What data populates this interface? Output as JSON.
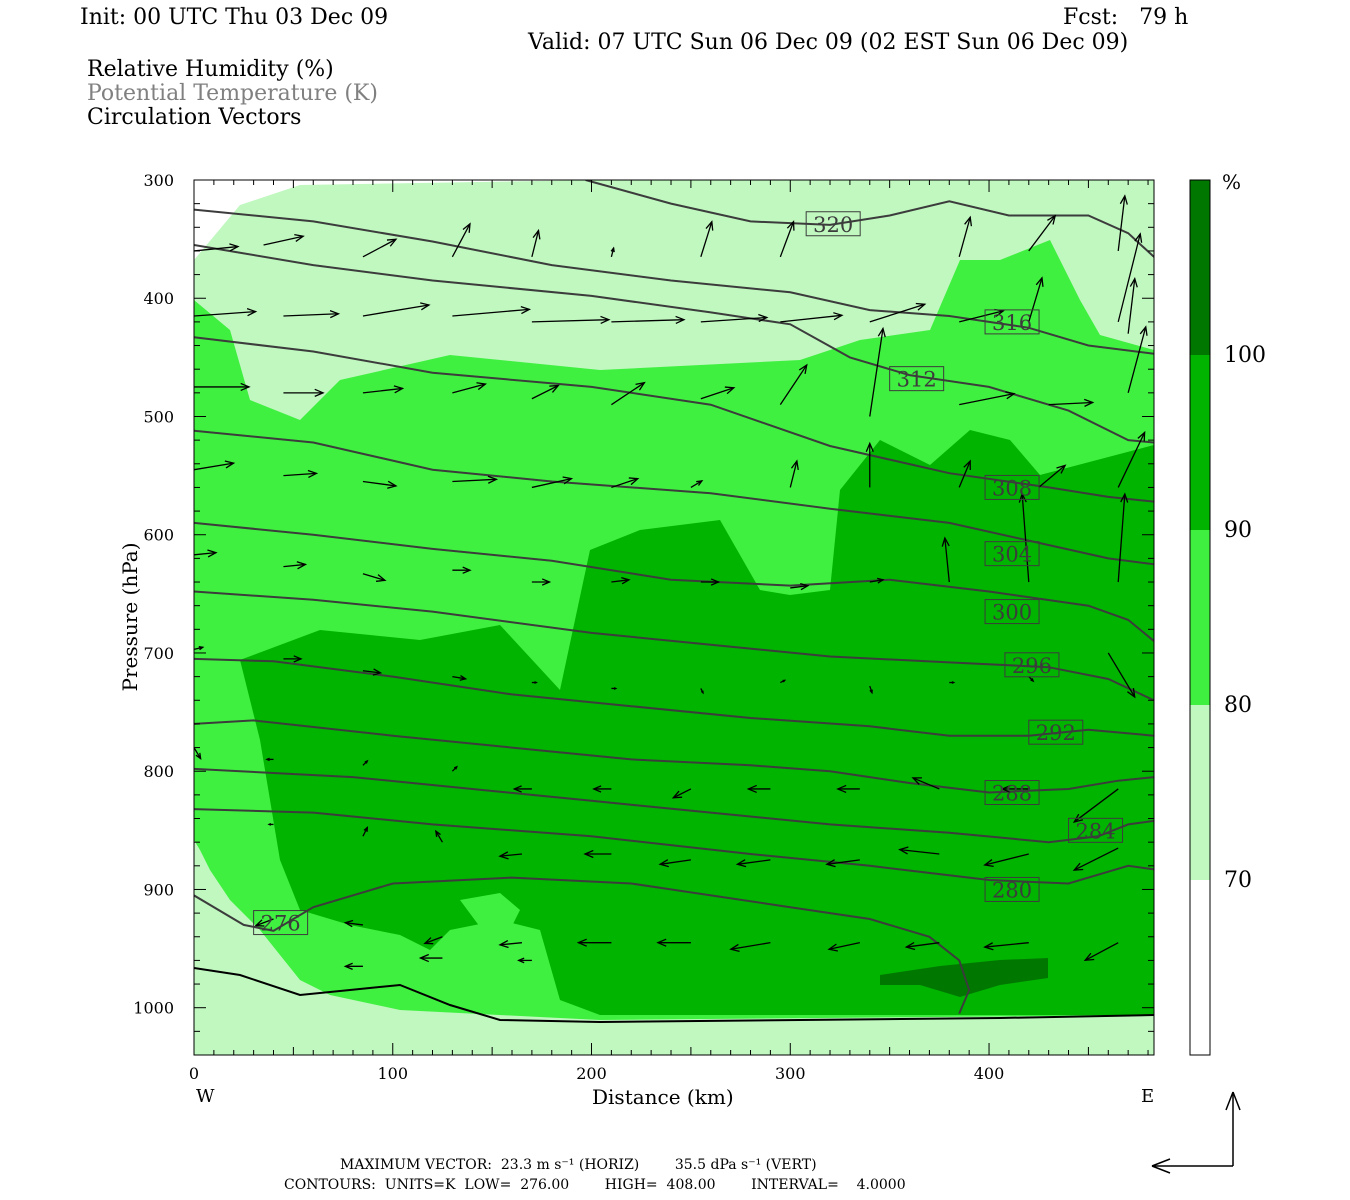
{
  "header": {
    "init": "Init: 00 UTC Thu 03 Dec 09",
    "fcst": "Fcst:   79 h",
    "valid": "Valid: 07 UTC Sun 06 Dec 09 (02 EST Sun 06 Dec 09)",
    "fields": [
      "Relative Humidity (%)",
      "Potential Temperature (K)",
      "Circulation Vectors"
    ]
  },
  "colors": {
    "rh_70_80": "#c0f8c0",
    "rh_80_90": "#40f040",
    "rh_90_100": "#00b400",
    "rh_100": "#007800",
    "theta": "#3c3c3c",
    "field2_text": "#808080"
  },
  "chart_data": {
    "type": "heatmap",
    "xlabel": "Distance (km)",
    "ylabel": "Pressure (hPa)",
    "xlim": [
      0,
      483
    ],
    "ylim": [
      1040,
      300
    ],
    "y_scale": "linear",
    "xticks": [
      "0",
      "100",
      "200",
      "300",
      "400"
    ],
    "yticks": [
      "300",
      "400",
      "500",
      "600",
      "700",
      "800",
      "900",
      "1000"
    ],
    "west_label": "W",
    "east_label": "E",
    "colorbar": {
      "unit": "%",
      "levels": [
        "100",
        "90",
        "80",
        "70"
      ]
    },
    "theta_contours": [
      {
        "label": "276",
        "label_at": [
          30,
          928
        ],
        "points": [
          [
            0,
            905
          ],
          [
            25,
            930
          ],
          [
            40,
            935
          ],
          [
            60,
            915
          ],
          [
            100,
            895
          ],
          [
            160,
            890
          ],
          [
            220,
            895
          ],
          [
            300,
            915
          ],
          [
            340,
            925
          ],
          [
            370,
            940
          ],
          [
            385,
            960
          ],
          [
            390,
            985
          ],
          [
            385,
            1005
          ]
        ]
      },
      {
        "label": "280",
        "label_at": [
          398,
          900
        ],
        "points": [
          [
            0,
            832
          ],
          [
            60,
            835
          ],
          [
            120,
            845
          ],
          [
            200,
            855
          ],
          [
            280,
            870
          ],
          [
            340,
            880
          ],
          [
            400,
            892
          ],
          [
            440,
            895
          ],
          [
            460,
            885
          ],
          [
            470,
            880
          ],
          [
            483,
            883
          ]
        ]
      },
      {
        "label": "284",
        "label_at": [
          440,
          850
        ],
        "points": [
          [
            0,
            798
          ],
          [
            80,
            805
          ],
          [
            140,
            815
          ],
          [
            200,
            825
          ],
          [
            260,
            835
          ],
          [
            320,
            845
          ],
          [
            380,
            852
          ],
          [
            430,
            860
          ],
          [
            455,
            855
          ],
          [
            470,
            845
          ],
          [
            483,
            842
          ]
        ]
      },
      {
        "label": "288",
        "label_at": [
          398,
          818
        ],
        "points": [
          [
            0,
            760
          ],
          [
            30,
            757
          ],
          [
            100,
            770
          ],
          [
            160,
            780
          ],
          [
            220,
            790
          ],
          [
            280,
            795
          ],
          [
            320,
            800
          ],
          [
            360,
            810
          ],
          [
            400,
            818
          ],
          [
            440,
            815
          ],
          [
            465,
            808
          ],
          [
            483,
            805
          ]
        ]
      },
      {
        "label": "292",
        "label_at": [
          420,
          767
        ],
        "points": [
          [
            0,
            705
          ],
          [
            40,
            707
          ],
          [
            100,
            720
          ],
          [
            160,
            735
          ],
          [
            220,
            745
          ],
          [
            280,
            755
          ],
          [
            340,
            762
          ],
          [
            380,
            770
          ],
          [
            420,
            770
          ],
          [
            450,
            765
          ],
          [
            483,
            770
          ]
        ]
      },
      {
        "label": "296",
        "label_at": [
          408,
          710
        ],
        "points": [
          [
            0,
            648
          ],
          [
            60,
            655
          ],
          [
            120,
            665
          ],
          [
            200,
            683
          ],
          [
            260,
            693
          ],
          [
            320,
            703
          ],
          [
            380,
            708
          ],
          [
            430,
            712
          ],
          [
            460,
            722
          ],
          [
            483,
            740
          ]
        ]
      },
      {
        "label": "300",
        "label_at": [
          398,
          665
        ],
        "points": [
          [
            0,
            590
          ],
          [
            60,
            600
          ],
          [
            120,
            612
          ],
          [
            180,
            622
          ],
          [
            240,
            638
          ],
          [
            300,
            643
          ],
          [
            350,
            638
          ],
          [
            400,
            648
          ],
          [
            450,
            660
          ],
          [
            470,
            672
          ],
          [
            483,
            690
          ]
        ]
      },
      {
        "label": "304",
        "label_at": [
          398,
          616
        ],
        "points": [
          [
            0,
            512
          ],
          [
            60,
            522
          ],
          [
            120,
            545
          ],
          [
            180,
            555
          ],
          [
            260,
            565
          ],
          [
            320,
            578
          ],
          [
            380,
            590
          ],
          [
            420,
            605
          ],
          [
            460,
            620
          ],
          [
            483,
            625
          ]
        ]
      },
      {
        "label": "308",
        "label_at": [
          398,
          560
        ],
        "points": [
          [
            0,
            433
          ],
          [
            60,
            445
          ],
          [
            120,
            463
          ],
          [
            200,
            475
          ],
          [
            260,
            490
          ],
          [
            320,
            525
          ],
          [
            380,
            548
          ],
          [
            430,
            560
          ],
          [
            460,
            568
          ],
          [
            483,
            572
          ]
        ]
      },
      {
        "label": "312",
        "label_at": [
          350,
          468
        ],
        "points": [
          [
            0,
            355
          ],
          [
            60,
            372
          ],
          [
            120,
            385
          ],
          [
            200,
            398
          ],
          [
            260,
            412
          ],
          [
            300,
            422
          ],
          [
            330,
            450
          ],
          [
            360,
            465
          ],
          [
            400,
            475
          ],
          [
            440,
            495
          ],
          [
            470,
            520
          ],
          [
            483,
            522
          ]
        ]
      },
      {
        "label": "316",
        "label_at": [
          398,
          420
        ],
        "points": [
          [
            0,
            325
          ],
          [
            60,
            335
          ],
          [
            120,
            352
          ],
          [
            180,
            372
          ],
          [
            240,
            385
          ],
          [
            300,
            395
          ],
          [
            340,
            410
          ],
          [
            380,
            415
          ],
          [
            420,
            425
          ],
          [
            450,
            440
          ],
          [
            483,
            447
          ]
        ]
      },
      {
        "label": "320",
        "label_at": [
          308,
          337
        ],
        "points": [
          [
            197,
            300
          ],
          [
            240,
            320
          ],
          [
            280,
            335
          ],
          [
            320,
            338
          ],
          [
            350,
            330
          ],
          [
            380,
            318
          ],
          [
            410,
            330
          ],
          [
            450,
            330
          ],
          [
            470,
            345
          ],
          [
            483,
            365
          ]
        ]
      }
    ],
    "vectors": [
      {
        "x": 0,
        "p": 360,
        "u": 20,
        "w": 2
      },
      {
        "x": 35,
        "p": 355,
        "u": 18,
        "w": 4
      },
      {
        "x": 85,
        "p": 365,
        "u": 15,
        "w": 8
      },
      {
        "x": 130,
        "p": 365,
        "u": 8,
        "w": 15
      },
      {
        "x": 170,
        "p": 365,
        "u": 3,
        "w": 12
      },
      {
        "x": 210,
        "p": 365,
        "u": 1,
        "w": 4
      },
      {
        "x": 255,
        "p": 365,
        "u": 5,
        "w": 16
      },
      {
        "x": 295,
        "p": 365,
        "u": 6,
        "w": 16
      },
      {
        "x": 385,
        "p": 365,
        "u": 5,
        "w": 18
      },
      {
        "x": 420,
        "p": 360,
        "u": 12,
        "w": 16
      },
      {
        "x": 465,
        "p": 360,
        "u": 3,
        "w": 25
      },
      {
        "x": 0,
        "p": 415,
        "u": 28,
        "w": 2
      },
      {
        "x": 45,
        "p": 415,
        "u": 25,
        "w": 1
      },
      {
        "x": 85,
        "p": 415,
        "u": 30,
        "w": 5
      },
      {
        "x": 130,
        "p": 415,
        "u": 35,
        "w": 3
      },
      {
        "x": 170,
        "p": 420,
        "u": 35,
        "w": 1
      },
      {
        "x": 210,
        "p": 420,
        "u": 33,
        "w": 1
      },
      {
        "x": 255,
        "p": 420,
        "u": 30,
        "w": 2
      },
      {
        "x": 295,
        "p": 420,
        "u": 28,
        "w": 3
      },
      {
        "x": 340,
        "p": 420,
        "u": 25,
        "w": 8
      },
      {
        "x": 385,
        "p": 420,
        "u": 20,
        "w": 5
      },
      {
        "x": 420,
        "p": 420,
        "u": 6,
        "w": 20
      },
      {
        "x": 465,
        "p": 420,
        "u": 10,
        "w": 40
      },
      {
        "x": 0,
        "p": 475,
        "u": 25,
        "w": 0
      },
      {
        "x": 45,
        "p": 480,
        "u": 18,
        "w": 0
      },
      {
        "x": 85,
        "p": 480,
        "u": 18,
        "w": 2
      },
      {
        "x": 130,
        "p": 480,
        "u": 15,
        "w": 4
      },
      {
        "x": 170,
        "p": 485,
        "u": 12,
        "w": 6
      },
      {
        "x": 210,
        "p": 490,
        "u": 15,
        "w": 10
      },
      {
        "x": 255,
        "p": 485,
        "u": 15,
        "w": 5
      },
      {
        "x": 295,
        "p": 490,
        "u": 12,
        "w": 18
      },
      {
        "x": 340,
        "p": 500,
        "u": 6,
        "w": 40
      },
      {
        "x": 385,
        "p": 490,
        "u": 25,
        "w": 5
      },
      {
        "x": 430,
        "p": 490,
        "u": 20,
        "w": 1
      },
      {
        "x": 470,
        "p": 480,
        "u": 8,
        "w": 30
      },
      {
        "x": 470,
        "p": 430,
        "u": 3,
        "w": 25
      },
      {
        "x": 0,
        "p": 545,
        "u": 18,
        "w": 3
      },
      {
        "x": 45,
        "p": 550,
        "u": 15,
        "w": 1
      },
      {
        "x": 85,
        "p": 555,
        "u": 15,
        "w": -2
      },
      {
        "x": 130,
        "p": 555,
        "u": 20,
        "w": 1
      },
      {
        "x": 170,
        "p": 560,
        "u": 18,
        "w": 4
      },
      {
        "x": 210,
        "p": 560,
        "u": 12,
        "w": 4
      },
      {
        "x": 250,
        "p": 560,
        "u": 5,
        "w": 3
      },
      {
        "x": 300,
        "p": 560,
        "u": 3,
        "w": 12
      },
      {
        "x": 340,
        "p": 560,
        "u": 0,
        "w": 20
      },
      {
        "x": 385,
        "p": 560,
        "u": 5,
        "w": 12
      },
      {
        "x": 425,
        "p": 560,
        "u": 12,
        "w": 10
      },
      {
        "x": 465,
        "p": 560,
        "u": 12,
        "w": 25
      },
      {
        "x": 0,
        "p": 617,
        "u": 10,
        "w": 1
      },
      {
        "x": 45,
        "p": 627,
        "u": 10,
        "w": 1
      },
      {
        "x": 85,
        "p": 633,
        "u": 10,
        "w": -3
      },
      {
        "x": 130,
        "p": 630,
        "u": 8,
        "w": 0
      },
      {
        "x": 170,
        "p": 640,
        "u": 8,
        "w": 0
      },
      {
        "x": 210,
        "p": 640,
        "u": 8,
        "w": 1
      },
      {
        "x": 255,
        "p": 640,
        "u": 8,
        "w": 0
      },
      {
        "x": 300,
        "p": 645,
        "u": 8,
        "w": 1
      },
      {
        "x": 340,
        "p": 640,
        "u": 6,
        "w": 1
      },
      {
        "x": 380,
        "p": 640,
        "u": -2,
        "w": 20
      },
      {
        "x": 420,
        "p": 640,
        "u": -3,
        "w": 40
      },
      {
        "x": 465,
        "p": 640,
        "u": 3,
        "w": 40
      },
      {
        "x": 0,
        "p": 697,
        "u": 4,
        "w": 1
      },
      {
        "x": 45,
        "p": 705,
        "u": 8,
        "w": 0
      },
      {
        "x": 85,
        "p": 715,
        "u": 8,
        "w": -1
      },
      {
        "x": 130,
        "p": 720,
        "u": 6,
        "w": -1
      },
      {
        "x": 170,
        "p": 725,
        "u": 2,
        "w": 0
      },
      {
        "x": 210,
        "p": 730,
        "u": 2,
        "w": 0
      },
      {
        "x": 255,
        "p": 730,
        "u": 1,
        "w": -2
      },
      {
        "x": 295,
        "p": 725,
        "u": 2,
        "w": 1
      },
      {
        "x": 340,
        "p": 728,
        "u": 1,
        "w": -3
      },
      {
        "x": 380,
        "p": 725,
        "u": 2,
        "w": 0
      },
      {
        "x": 420,
        "p": 720,
        "u": 2,
        "w": -2
      },
      {
        "x": 460,
        "p": 700,
        "u": 12,
        "w": -20
      },
      {
        "x": 0,
        "p": 780,
        "u": 3,
        "w": -5
      },
      {
        "x": 40,
        "p": 790,
        "u": -3,
        "w": 0
      },
      {
        "x": 85,
        "p": 795,
        "u": 2,
        "w": 2
      },
      {
        "x": 130,
        "p": 800,
        "u": 2,
        "w": 2
      },
      {
        "x": 170,
        "p": 815,
        "u": -8,
        "w": 0
      },
      {
        "x": 210,
        "p": 815,
        "u": -8,
        "w": 0
      },
      {
        "x": 250,
        "p": 815,
        "u": -8,
        "w": -4
      },
      {
        "x": 290,
        "p": 815,
        "u": -10,
        "w": 0
      },
      {
        "x": 335,
        "p": 815,
        "u": -10,
        "w": 0
      },
      {
        "x": 375,
        "p": 815,
        "u": -12,
        "w": 5
      },
      {
        "x": 420,
        "p": 815,
        "u": -12,
        "w": 0
      },
      {
        "x": 465,
        "p": 815,
        "u": -20,
        "w": -15
      },
      {
        "x": 40,
        "p": 845,
        "u": -2,
        "w": 0
      },
      {
        "x": 85,
        "p": 855,
        "u": 2,
        "w": 4
      },
      {
        "x": 125,
        "p": 860,
        "u": -3,
        "w": 5
      },
      {
        "x": 165,
        "p": 870,
        "u": -10,
        "w": -1
      },
      {
        "x": 210,
        "p": 870,
        "u": -12,
        "w": 0
      },
      {
        "x": 250,
        "p": 875,
        "u": -14,
        "w": -2
      },
      {
        "x": 290,
        "p": 875,
        "u": -15,
        "w": -2
      },
      {
        "x": 335,
        "p": 875,
        "u": -15,
        "w": -2
      },
      {
        "x": 375,
        "p": 870,
        "u": -18,
        "w": 2
      },
      {
        "x": 420,
        "p": 870,
        "u": -20,
        "w": -5
      },
      {
        "x": 465,
        "p": 865,
        "u": -20,
        "w": -10
      },
      {
        "x": 40,
        "p": 925,
        "u": -8,
        "w": -3
      },
      {
        "x": 85,
        "p": 930,
        "u": -8,
        "w": 1
      },
      {
        "x": 125,
        "p": 940,
        "u": -8,
        "w": -3
      },
      {
        "x": 165,
        "p": 945,
        "u": -10,
        "w": -1
      },
      {
        "x": 210,
        "p": 945,
        "u": -15,
        "w": 0
      },
      {
        "x": 250,
        "p": 945,
        "u": -15,
        "w": 0
      },
      {
        "x": 290,
        "p": 945,
        "u": -18,
        "w": -3
      },
      {
        "x": 335,
        "p": 945,
        "u": -14,
        "w": -3
      },
      {
        "x": 375,
        "p": 945,
        "u": -15,
        "w": -2
      },
      {
        "x": 420,
        "p": 945,
        "u": -20,
        "w": -2
      },
      {
        "x": 465,
        "p": 945,
        "u": -15,
        "w": -8
      },
      {
        "x": 85,
        "p": 965,
        "u": -8,
        "w": 0
      },
      {
        "x": 125,
        "p": 958,
        "u": -10,
        "w": 0
      },
      {
        "x": 170,
        "p": 960,
        "u": -6,
        "w": 0
      }
    ]
  },
  "footer": {
    "line1": "MAXIMUM VECTOR:  23.3 m s⁻¹ (HORIZ)        35.5 dPa s⁻¹ (VERT)",
    "line2": "CONTOURS:  UNITS=K  LOW=  276.00        HIGH=  408.00        INTERVAL=    4.0000"
  }
}
